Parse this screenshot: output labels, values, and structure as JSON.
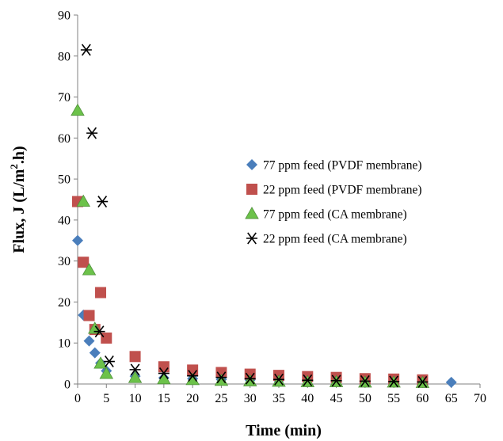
{
  "chart_data": {
    "type": "scatter",
    "xlabel": "Time (min)",
    "ylabel": "Flux, J (L/m².h)",
    "ylabel_parts": {
      "pre": "Flux, J (L/m",
      "sup": "2",
      "post": ".h)"
    },
    "xlim": [
      0,
      70
    ],
    "ylim": [
      0,
      90
    ],
    "xticks": [
      0,
      5,
      10,
      15,
      20,
      25,
      30,
      35,
      40,
      45,
      50,
      55,
      60,
      65,
      70
    ],
    "yticks": [
      0,
      10,
      20,
      30,
      40,
      50,
      60,
      70,
      80,
      90
    ],
    "grid": false,
    "legend_position": "center-right",
    "series": [
      {
        "name": "77 ppm feed (PVDF membrane)",
        "marker": "diamond",
        "color": "#4a7ebb",
        "points": [
          [
            0,
            35
          ],
          [
            1,
            16.8
          ],
          [
            2,
            10.5
          ],
          [
            3,
            7.6
          ],
          [
            4,
            5.1
          ],
          [
            5,
            3.2
          ],
          [
            10,
            1.9
          ],
          [
            15,
            1.5
          ],
          [
            20,
            1.3
          ],
          [
            25,
            1.1
          ],
          [
            30,
            1.0
          ],
          [
            35,
            0.9
          ],
          [
            40,
            0.8
          ],
          [
            45,
            0.7
          ],
          [
            50,
            0.6
          ],
          [
            55,
            0.5
          ],
          [
            60,
            0.5
          ],
          [
            65,
            0.4
          ]
        ]
      },
      {
        "name": "22 ppm feed (PVDF membrane)",
        "marker": "square",
        "color": "#c0504d",
        "points": [
          [
            0,
            44.5
          ],
          [
            1,
            29.7
          ],
          [
            2,
            16.7
          ],
          [
            3,
            13.3
          ],
          [
            4,
            22.3
          ],
          [
            5,
            11.2
          ],
          [
            10,
            6.7
          ],
          [
            15,
            4.2
          ],
          [
            20,
            3.4
          ],
          [
            25,
            2.8
          ],
          [
            30,
            2.4
          ],
          [
            35,
            2.1
          ],
          [
            40,
            1.8
          ],
          [
            45,
            1.6
          ],
          [
            50,
            1.3
          ],
          [
            55,
            1.2
          ],
          [
            60,
            1.0
          ]
        ]
      },
      {
        "name": "77 ppm feed (CA membrane)",
        "marker": "triangle",
        "color": "#6cc24a",
        "points": [
          [
            0,
            66.7
          ],
          [
            1,
            44.5
          ],
          [
            2,
            27.8
          ],
          [
            3,
            13.5
          ],
          [
            4,
            5.0
          ],
          [
            5,
            2.5
          ],
          [
            10,
            1.5
          ],
          [
            15,
            1.2
          ],
          [
            20,
            1.0
          ],
          [
            25,
            0.8
          ],
          [
            30,
            0.7
          ],
          [
            35,
            0.6
          ],
          [
            40,
            0.5
          ],
          [
            45,
            0.5
          ],
          [
            50,
            0.4
          ],
          [
            55,
            0.4
          ],
          [
            60,
            0.3
          ]
        ]
      },
      {
        "name": "22 ppm feed (CA membrane)",
        "marker": "asterisk",
        "color": "#000000",
        "points": [
          [
            1.5,
            81.5
          ],
          [
            2.5,
            61.2
          ],
          [
            4.3,
            44.5
          ],
          [
            3.8,
            12.8
          ],
          [
            5.5,
            5.5
          ],
          [
            10,
            3.5
          ],
          [
            15,
            2.6
          ],
          [
            20,
            2.0
          ],
          [
            25,
            1.6
          ],
          [
            30,
            1.3
          ],
          [
            35,
            1.1
          ],
          [
            40,
            0.9
          ],
          [
            45,
            0.8
          ],
          [
            50,
            0.7
          ],
          [
            55,
            0.6
          ],
          [
            60,
            0.5
          ]
        ]
      }
    ]
  }
}
